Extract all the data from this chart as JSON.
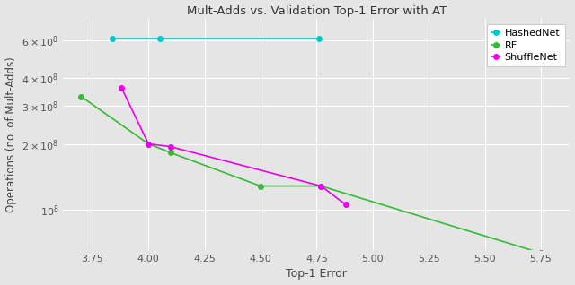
{
  "title": "Mult-Adds vs. Validation Top-1 Error with AT",
  "xlabel": "Top-1 Error",
  "ylabel": "Operations (no. of Mult-Adds)",
  "hashednet": {
    "x": [
      3.84,
      4.05,
      4.76
    ],
    "y": [
      610000000.0,
      610000000.0,
      610000000.0
    ],
    "color": "#00C8C8",
    "label": "HashedNet"
  },
  "rf": {
    "x": [
      3.7,
      4.0,
      4.1,
      4.5,
      4.77,
      5.75
    ],
    "y": [
      330000000.0,
      200000000.0,
      182000000.0,
      128000000.0,
      128000000.0,
      63000000.0
    ],
    "color": "#33BB33",
    "label": "RF"
  },
  "shufflenet": {
    "x": [
      3.88,
      4.0,
      4.1,
      4.77,
      4.88
    ],
    "y": [
      362000000.0,
      200000000.0,
      194000000.0,
      128000000.0,
      105000000.0
    ],
    "color": "#EE00EE",
    "label": "ShuffleNet"
  },
  "xlim": [
    3.62,
    5.88
  ],
  "ylim_log": [
    65000000.0,
    750000000.0
  ],
  "yticks": [
    100000000.0,
    200000000.0,
    300000000.0,
    400000000.0,
    600000000.0
  ],
  "xticks": [
    3.75,
    4.0,
    4.25,
    4.5,
    4.75,
    5.0,
    5.25,
    5.5,
    5.75
  ],
  "background_color": "#E5E5E5",
  "grid_color": "#FFFFFF",
  "figsize": [
    6.4,
    3.18
  ],
  "dpi": 100
}
